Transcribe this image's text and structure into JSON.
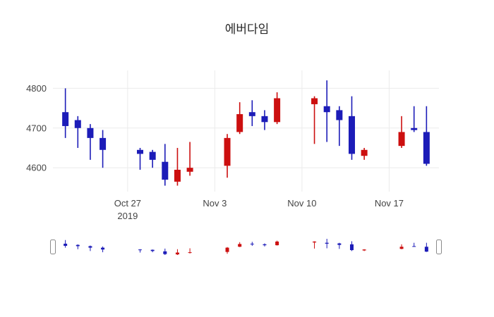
{
  "title": "에버다임",
  "colors": {
    "increasing": "#cc0f0f",
    "decreasing": "#1c1cb8",
    "grid": "#ebebeb",
    "axis_text": "#444444",
    "title_text": "#2a2a2a",
    "slider_handle_fill": "#ffffff",
    "slider_handle_border": "#8a8a8a"
  },
  "chart_data": {
    "type": "candlestick",
    "title": "에버다임",
    "legend": "none",
    "grid": true,
    "rangeslider": true,
    "xrange": [
      "2019-10-21",
      "2019-11-21"
    ],
    "ylim": [
      4540,
      4845
    ],
    "y_ticks": [
      {
        "value": 4600,
        "label": "4600"
      },
      {
        "value": 4700,
        "label": "4700"
      },
      {
        "value": 4800,
        "label": "4800"
      }
    ],
    "x_ticks": [
      {
        "date": "2019-10-27",
        "label": "Oct 27",
        "sublabel": "2019"
      },
      {
        "date": "2019-11-03",
        "label": "Nov 3",
        "sublabel": ""
      },
      {
        "date": "2019-11-10",
        "label": "Nov 10",
        "sublabel": ""
      },
      {
        "date": "2019-11-17",
        "label": "Nov 17",
        "sublabel": ""
      }
    ],
    "candles": [
      {
        "date": "2019-10-22",
        "open": 4740,
        "high": 4800,
        "low": 4675,
        "close": 4705
      },
      {
        "date": "2019-10-23",
        "open": 4720,
        "high": 4730,
        "low": 4650,
        "close": 4700
      },
      {
        "date": "2019-10-24",
        "open": 4700,
        "high": 4710,
        "low": 4620,
        "close": 4675
      },
      {
        "date": "2019-10-25",
        "open": 4675,
        "high": 4695,
        "low": 4600,
        "close": 4645
      },
      {
        "date": "2019-10-28",
        "open": 4645,
        "high": 4650,
        "low": 4595,
        "close": 4635
      },
      {
        "date": "2019-10-29",
        "open": 4640,
        "high": 4645,
        "low": 4600,
        "close": 4620
      },
      {
        "date": "2019-10-30",
        "open": 4615,
        "high": 4660,
        "low": 4555,
        "close": 4570
      },
      {
        "date": "2019-10-31",
        "open": 4565,
        "high": 4650,
        "low": 4555,
        "close": 4595
      },
      {
        "date": "2019-11-01",
        "open": 4590,
        "high": 4665,
        "low": 4580,
        "close": 4600
      },
      {
        "date": "2019-11-04",
        "open": 4605,
        "high": 4685,
        "low": 4575,
        "close": 4675
      },
      {
        "date": "2019-11-05",
        "open": 4690,
        "high": 4765,
        "low": 4685,
        "close": 4735
      },
      {
        "date": "2019-11-06",
        "open": 4740,
        "high": 4770,
        "low": 4705,
        "close": 4730
      },
      {
        "date": "2019-11-07",
        "open": 4730,
        "high": 4745,
        "low": 4695,
        "close": 4715
      },
      {
        "date": "2019-11-08",
        "open": 4715,
        "high": 4790,
        "low": 4710,
        "close": 4775
      },
      {
        "date": "2019-11-11",
        "open": 4760,
        "high": 4780,
        "low": 4660,
        "close": 4775
      },
      {
        "date": "2019-11-12",
        "open": 4755,
        "high": 4820,
        "low": 4665,
        "close": 4740
      },
      {
        "date": "2019-11-13",
        "open": 4745,
        "high": 4755,
        "low": 4655,
        "close": 4720
      },
      {
        "date": "2019-11-14",
        "open": 4730,
        "high": 4780,
        "low": 4620,
        "close": 4635
      },
      {
        "date": "2019-11-15",
        "open": 4630,
        "high": 4650,
        "low": 4620,
        "close": 4645
      },
      {
        "date": "2019-11-18",
        "open": 4655,
        "high": 4730,
        "low": 4650,
        "close": 4690
      },
      {
        "date": "2019-11-19",
        "open": 4700,
        "high": 4755,
        "low": 4690,
        "close": 4695
      },
      {
        "date": "2019-11-20",
        "open": 4690,
        "high": 4755,
        "low": 4605,
        "close": 4610
      }
    ]
  }
}
